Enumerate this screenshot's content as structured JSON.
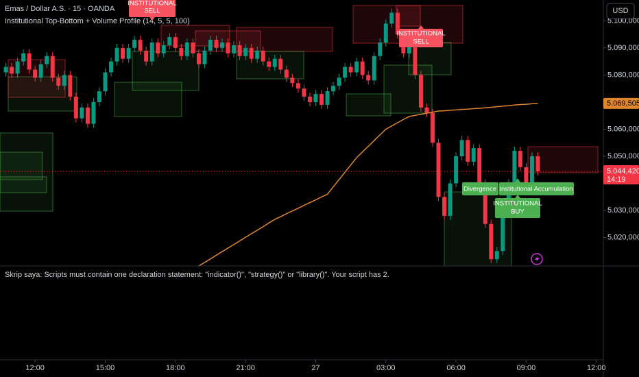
{
  "header": {
    "symbol": "Emas / Dollar A.S. · 15 · OANDA",
    "indicator": "Institutional Top-Bottom + Volume Profile (14, 5, 5, 100)",
    "currency": "USD"
  },
  "chart_data": {
    "type": "candlestick",
    "x": [
      -5,
      -4,
      -3,
      -2,
      -1,
      0,
      1,
      2,
      3,
      4,
      5,
      6,
      7,
      8,
      9,
      10,
      11,
      12,
      13,
      14,
      15,
      16,
      17,
      18,
      19,
      20,
      21,
      22,
      23,
      24,
      25,
      26,
      27,
      28,
      29,
      30,
      31,
      32,
      33,
      34,
      35,
      36,
      37,
      38,
      39,
      40,
      41,
      42,
      43,
      44,
      45,
      46,
      47,
      48,
      49,
      50,
      51,
      52,
      53,
      54,
      55,
      56,
      57,
      58,
      59,
      60,
      61,
      62,
      63,
      64,
      65,
      66,
      67,
      68,
      69,
      70,
      71,
      72,
      73,
      74,
      75,
      76,
      77,
      78,
      79,
      80,
      81,
      82,
      83,
      84,
      85,
      86
    ],
    "open": [
      5.081,
      5.083,
      5.0805,
      5.085,
      5.088,
      5.082,
      5.079,
      5.084,
      5.087,
      5.079,
      5.076,
      5.08,
      5.072,
      5.064,
      5.068,
      5.062,
      5.07,
      5.074,
      5.081,
      5.085,
      5.09,
      5.086,
      5.09,
      5.093,
      5.089,
      5.085,
      5.092,
      5.088,
      5.091,
      5.094,
      5.09,
      5.087,
      5.092,
      5.088,
      5.084,
      5.089,
      5.093,
      5.09,
      5.092,
      5.088,
      5.091,
      5.087,
      5.09,
      5.086,
      5.089,
      5.085,
      5.083,
      5.086,
      5.082,
      5.079,
      5.077,
      5.075,
      5.072,
      5.07,
      5.073,
      5.069,
      5.074,
      5.076,
      5.079,
      5.083,
      5.081,
      5.085,
      5.08,
      5.078,
      5.087,
      5.092,
      5.099,
      5.103,
      5.095,
      5.088,
      5.092,
      5.08,
      5.068,
      5.066,
      5.055,
      5.035,
      5.028,
      5.04,
      5.05,
      5.056,
      5.048,
      5.053,
      5.04,
      5.025,
      5.012,
      5.015,
      5.03,
      5.04,
      5.052,
      5.046,
      5.04,
      5.05
    ],
    "high": [
      5.0845,
      5.0845,
      5.0865,
      5.0895,
      5.0895,
      5.0835,
      5.0855,
      5.0885,
      5.0885,
      5.0805,
      5.0815,
      5.0815,
      5.0735,
      5.0695,
      5.0695,
      5.0715,
      5.0755,
      5.0825,
      5.0865,
      5.0915,
      5.0915,
      5.0915,
      5.0945,
      5.0945,
      5.0905,
      5.0935,
      5.0935,
      5.0925,
      5.0955,
      5.0955,
      5.0915,
      5.0935,
      5.0935,
      5.0895,
      5.0905,
      5.0945,
      5.0945,
      5.0935,
      5.0935,
      5.0925,
      5.0925,
      5.0915,
      5.0915,
      5.0905,
      5.0905,
      5.0865,
      5.0875,
      5.0875,
      5.0835,
      5.0805,
      5.0785,
      5.0765,
      5.0735,
      5.0745,
      5.0745,
      5.0755,
      5.0775,
      5.0805,
      5.0845,
      5.0845,
      5.0865,
      5.0865,
      5.0815,
      5.0885,
      5.0935,
      5.1005,
      5.1045,
      5.1045,
      5.0965,
      5.0935,
      5.0935,
      5.0815,
      5.0695,
      5.0675,
      5.0565,
      5.0365,
      5.0415,
      5.0515,
      5.0575,
      5.0575,
      5.0545,
      5.0545,
      5.0415,
      5.0265,
      5.0165,
      5.0315,
      5.0415,
      5.0535,
      5.0535,
      5.0475,
      5.0515,
      5.0515
    ],
    "low": [
      5.0795,
      5.079,
      5.079,
      5.0835,
      5.0805,
      5.0775,
      5.0775,
      5.0825,
      5.0775,
      5.0745,
      5.0745,
      5.0705,
      5.0625,
      5.0625,
      5.0605,
      5.0605,
      5.0685,
      5.0725,
      5.0795,
      5.0835,
      5.0845,
      5.0845,
      5.0885,
      5.0875,
      5.0835,
      5.0835,
      5.0865,
      5.0865,
      5.0895,
      5.0885,
      5.0855,
      5.0855,
      5.0865,
      5.0825,
      5.0825,
      5.0875,
      5.0885,
      5.0885,
      5.0865,
      5.0865,
      5.0855,
      5.0855,
      5.0845,
      5.0845,
      5.0835,
      5.0815,
      5.0815,
      5.0805,
      5.0775,
      5.0755,
      5.0735,
      5.0705,
      5.0685,
      5.0685,
      5.0675,
      5.0675,
      5.0725,
      5.0745,
      5.0775,
      5.0795,
      5.0795,
      5.0785,
      5.0765,
      5.0765,
      5.0855,
      5.0905,
      5.0975,
      5.0935,
      5.0865,
      5.0865,
      5.0785,
      5.0665,
      5.0645,
      5.0535,
      5.0335,
      5.0265,
      5.0265,
      5.0385,
      5.0485,
      5.0465,
      5.0465,
      5.0385,
      5.0235,
      5.0105,
      5.0105,
      5.0135,
      5.0285,
      5.0385,
      5.0445,
      5.0385,
      5.0385,
      5.04292
    ],
    "close": [
      5.083,
      5.0805,
      5.085,
      5.088,
      5.082,
      5.079,
      5.084,
      5.087,
      5.079,
      5.076,
      5.08,
      5.072,
      5.064,
      5.068,
      5.062,
      5.07,
      5.074,
      5.081,
      5.085,
      5.09,
      5.086,
      5.09,
      5.093,
      5.089,
      5.085,
      5.092,
      5.088,
      5.091,
      5.094,
      5.09,
      5.087,
      5.092,
      5.088,
      5.084,
      5.089,
      5.093,
      5.09,
      5.092,
      5.088,
      5.091,
      5.087,
      5.09,
      5.086,
      5.089,
      5.085,
      5.083,
      5.086,
      5.082,
      5.079,
      5.077,
      5.075,
      5.072,
      5.07,
      5.073,
      5.069,
      5.074,
      5.076,
      5.079,
      5.083,
      5.081,
      5.085,
      5.08,
      5.078,
      5.087,
      5.092,
      5.099,
      5.103,
      5.095,
      5.088,
      5.092,
      5.08,
      5.068,
      5.066,
      5.055,
      5.035,
      5.028,
      5.04,
      5.05,
      5.056,
      5.048,
      5.053,
      5.04,
      5.025,
      5.012,
      5.015,
      5.03,
      5.04,
      5.052,
      5.046,
      5.04,
      5.05,
      5.04442
    ],
    "up_color": "#089981",
    "down_color": "#f23645",
    "ema": {
      "color": "#e0872e",
      "values": [
        null,
        null,
        null,
        null,
        null,
        null,
        null,
        null,
        null,
        null,
        null,
        null,
        null,
        null,
        null,
        null,
        null,
        null,
        null,
        null,
        null,
        null,
        null,
        null,
        null,
        null,
        null,
        null,
        null,
        null,
        null,
        null,
        null,
        5.0095,
        5.0108,
        5.0121,
        5.0135,
        5.0148,
        5.0161,
        5.0174,
        5.0187,
        5.0201,
        5.0214,
        5.0227,
        5.024,
        5.0254,
        5.0267,
        5.0277,
        5.0288,
        5.0298,
        5.0308,
        5.0319,
        5.0329,
        5.0339,
        5.035,
        5.036,
        5.0387,
        5.0414,
        5.0441,
        5.0468,
        5.0495,
        5.0516,
        5.0537,
        5.0558,
        5.0579,
        5.06,
        5.0612,
        5.0624,
        5.0636,
        5.0647,
        5.0651,
        5.0655,
        5.0659,
        5.0663,
        5.0667,
        5.0668,
        5.067,
        5.0671,
        5.0673,
        5.0674,
        5.0676,
        5.0677,
        5.0679,
        5.0681,
        5.0683,
        5.0685,
        5.0687,
        5.0689,
        5.0691,
        5.0692,
        5.0694,
        5.069505
      ]
    },
    "xlim": [
      -6,
      97.2
    ],
    "xticks": [
      {
        "value": 0,
        "label": "12:00"
      },
      {
        "value": 12,
        "label": "15:00"
      },
      {
        "value": 24,
        "label": "18:00"
      },
      {
        "value": 36,
        "label": "21:00"
      },
      {
        "value": 48,
        "label": "27"
      },
      {
        "value": 60,
        "label": "03:00"
      },
      {
        "value": 72,
        "label": "06:00"
      },
      {
        "value": 84,
        "label": "09:00"
      },
      {
        "value": 96,
        "label": "12:00"
      }
    ],
    "ylim": [
      5.0095,
      5.1077
    ],
    "yticks": [
      {
        "value": 5.1,
        "label": "5.100,000"
      },
      {
        "value": 5.09,
        "label": "5.090,000"
      },
      {
        "value": 5.08,
        "label": "5.080,000"
      },
      {
        "value": 5.06,
        "label": "5.060,000"
      },
      {
        "value": 5.05,
        "label": "5.050,000"
      },
      {
        "value": 5.03,
        "label": "5.030,000"
      },
      {
        "value": 5.02,
        "label": "5.020,000"
      }
    ],
    "grid": false,
    "last_price": {
      "value": 5.04442,
      "label": "5.044,420"
    },
    "countdown": "14:19",
    "ema_label": {
      "value": 5.069505,
      "label": "5.069,505"
    },
    "annotations": [
      {
        "lines": [
          "INSTITUTIONAL",
          "SELL"
        ]
      },
      {
        "lines": [
          "INSTITUTIONAL",
          "SELL"
        ]
      },
      {
        "lines": [
          "Divergence"
        ]
      },
      {
        "lines": [
          "Institutional Accumulation"
        ]
      },
      {
        "lines": [
          "INSTITUTIONAL",
          "BUY"
        ]
      }
    ]
  },
  "console": {
    "message": "Skrip saya: Scripts must contain one declaration statement: \"indicator()\", \"strategy()\" or \"library()\". Your script has 2."
  }
}
